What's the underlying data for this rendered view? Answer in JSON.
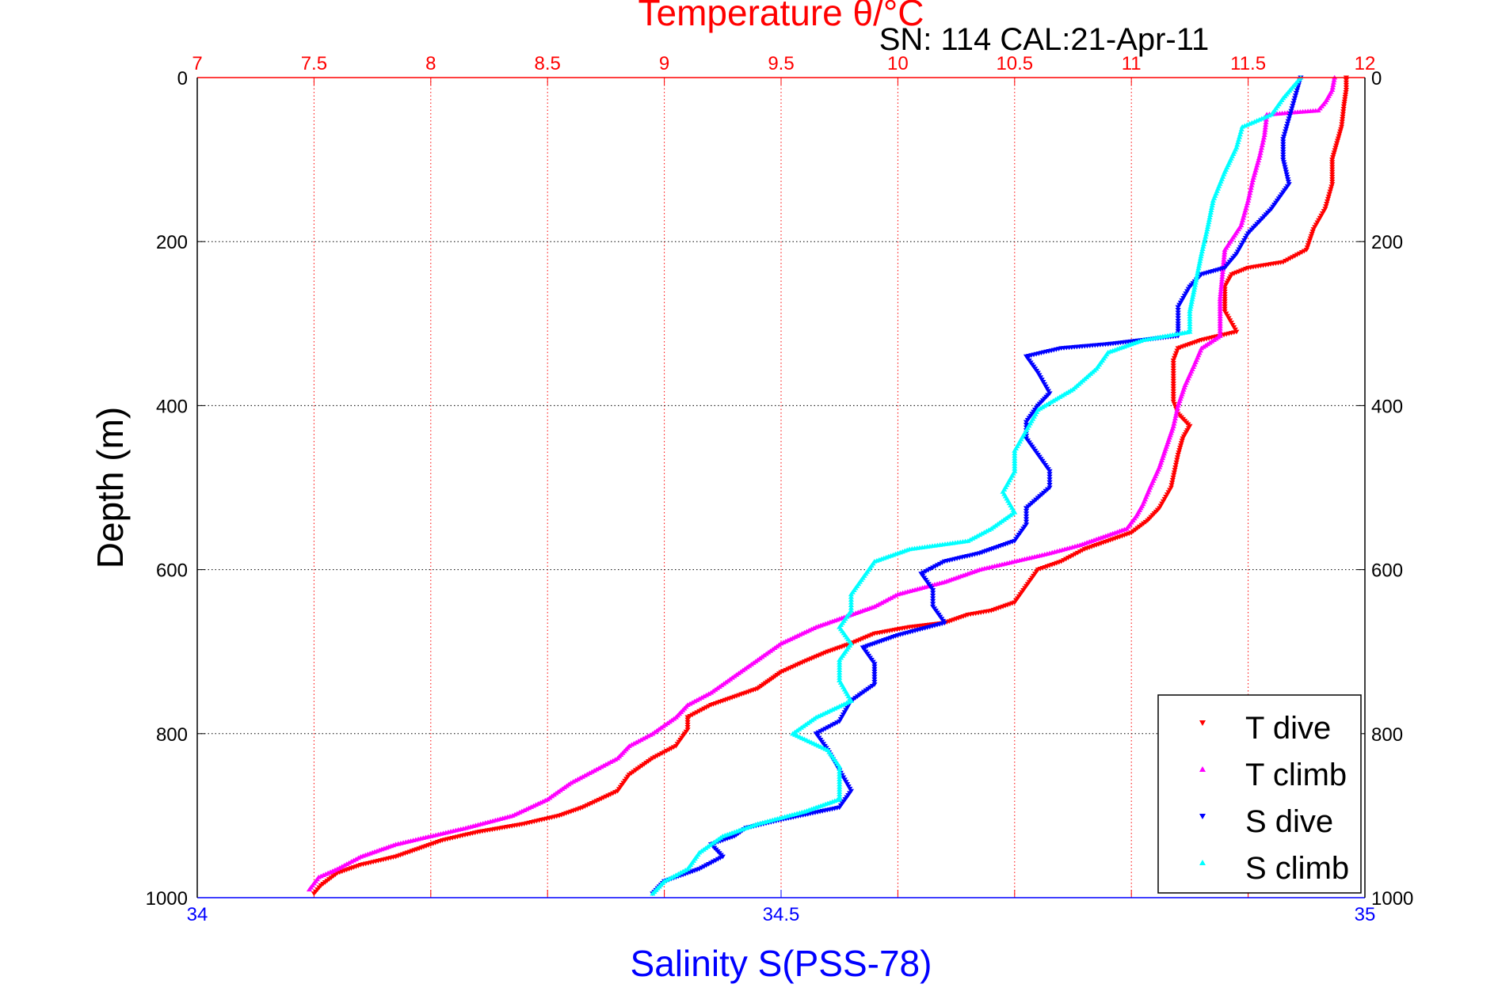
{
  "chart_data": {
    "type": "scatter",
    "subtitle": "SN: 114  CAL:21-Apr-11",
    "top_axis": {
      "label": "Temperature θ/°C",
      "range": [
        7,
        12
      ],
      "ticks": [
        "7",
        "7.5",
        "8",
        "8.5",
        "9",
        "9.5",
        "10",
        "10.5",
        "11",
        "11.5",
        "12"
      ],
      "color": "#ff0000",
      "grid": true
    },
    "bottom_axis": {
      "label": "Salinity S(PSS-78)",
      "range": [
        34,
        35
      ],
      "ticks": [
        "34",
        "34.5",
        "35"
      ],
      "color": "#0000ff"
    },
    "y_axis": {
      "label": "Depth (m)",
      "range": [
        0,
        1000
      ],
      "reversed": true,
      "ticks": [
        "0",
        "200",
        "400",
        "600",
        "800",
        "1000"
      ],
      "grid": true
    },
    "legend": {
      "placement": "bottom-right",
      "entries": [
        {
          "label": "T dive",
          "color": "#ff0000",
          "marker": "triangle-down"
        },
        {
          "label": "T climb",
          "color": "#ff00ff",
          "marker": "triangle-up"
        },
        {
          "label": "S dive",
          "color": "#0000ff",
          "marker": "triangle-down"
        },
        {
          "label": "S climb",
          "color": "#00ffff",
          "marker": "triangle-up"
        }
      ]
    },
    "series": [
      {
        "name": "T dive",
        "axis": "top",
        "color": "#ff0000",
        "marker": "triangle-down",
        "points": [
          [
            11.92,
            0
          ],
          [
            11.92,
            15
          ],
          [
            11.91,
            35
          ],
          [
            11.9,
            60
          ],
          [
            11.88,
            80
          ],
          [
            11.86,
            100
          ],
          [
            11.86,
            130
          ],
          [
            11.83,
            160
          ],
          [
            11.78,
            185
          ],
          [
            11.75,
            210
          ],
          [
            11.65,
            225
          ],
          [
            11.5,
            232
          ],
          [
            11.43,
            240
          ],
          [
            11.4,
            255
          ],
          [
            11.4,
            270
          ],
          [
            11.4,
            285
          ],
          [
            11.45,
            310
          ],
          [
            11.3,
            320
          ],
          [
            11.2,
            330
          ],
          [
            11.18,
            345
          ],
          [
            11.18,
            370
          ],
          [
            11.18,
            395
          ],
          [
            11.2,
            410
          ],
          [
            11.25,
            425
          ],
          [
            11.22,
            440
          ],
          [
            11.2,
            460
          ],
          [
            11.17,
            500
          ],
          [
            11.12,
            525
          ],
          [
            11.07,
            540
          ],
          [
            11.0,
            555
          ],
          [
            10.9,
            565
          ],
          [
            10.8,
            575
          ],
          [
            10.7,
            590
          ],
          [
            10.6,
            600
          ],
          [
            10.55,
            620
          ],
          [
            10.5,
            640
          ],
          [
            10.4,
            650
          ],
          [
            10.3,
            655
          ],
          [
            10.2,
            665
          ],
          [
            10.05,
            670
          ],
          [
            9.9,
            678
          ],
          [
            9.8,
            690
          ],
          [
            9.7,
            700
          ],
          [
            9.6,
            712
          ],
          [
            9.5,
            725
          ],
          [
            9.45,
            735
          ],
          [
            9.4,
            745
          ],
          [
            9.3,
            755
          ],
          [
            9.2,
            765
          ],
          [
            9.1,
            780
          ],
          [
            9.1,
            795
          ],
          [
            9.05,
            815
          ],
          [
            8.95,
            830
          ],
          [
            8.85,
            850
          ],
          [
            8.8,
            870
          ],
          [
            8.65,
            890
          ],
          [
            8.55,
            900
          ],
          [
            8.4,
            910
          ],
          [
            8.2,
            920
          ],
          [
            8.05,
            930
          ],
          [
            7.95,
            940
          ],
          [
            7.85,
            950
          ],
          [
            7.7,
            960
          ],
          [
            7.6,
            970
          ],
          [
            7.53,
            985
          ],
          [
            7.5,
            995
          ]
        ]
      },
      {
        "name": "T climb",
        "axis": "top",
        "color": "#ff00ff",
        "marker": "triangle-up",
        "points": [
          [
            11.87,
            0
          ],
          [
            11.86,
            15
          ],
          [
            11.83,
            30
          ],
          [
            11.8,
            40
          ],
          [
            11.58,
            45
          ],
          [
            11.57,
            70
          ],
          [
            11.55,
            95
          ],
          [
            11.52,
            125
          ],
          [
            11.5,
            150
          ],
          [
            11.47,
            180
          ],
          [
            11.4,
            210
          ],
          [
            11.39,
            240
          ],
          [
            11.38,
            270
          ],
          [
            11.38,
            300
          ],
          [
            11.38,
            315
          ],
          [
            11.3,
            330
          ],
          [
            11.27,
            350
          ],
          [
            11.23,
            375
          ],
          [
            11.2,
            400
          ],
          [
            11.18,
            425
          ],
          [
            11.15,
            450
          ],
          [
            11.12,
            475
          ],
          [
            11.08,
            500
          ],
          [
            11.05,
            520
          ],
          [
            11.02,
            535
          ],
          [
            10.98,
            550
          ],
          [
            10.88,
            560
          ],
          [
            10.78,
            570
          ],
          [
            10.65,
            580
          ],
          [
            10.5,
            590
          ],
          [
            10.35,
            600
          ],
          [
            10.2,
            615
          ],
          [
            10.0,
            630
          ],
          [
            9.9,
            645
          ],
          [
            9.8,
            655
          ],
          [
            9.65,
            670
          ],
          [
            9.5,
            690
          ],
          [
            9.4,
            710
          ],
          [
            9.3,
            730
          ],
          [
            9.2,
            750
          ],
          [
            9.1,
            765
          ],
          [
            9.05,
            780
          ],
          [
            8.95,
            800
          ],
          [
            8.85,
            815
          ],
          [
            8.8,
            830
          ],
          [
            8.7,
            845
          ],
          [
            8.6,
            860
          ],
          [
            8.5,
            880
          ],
          [
            8.35,
            900
          ],
          [
            8.15,
            915
          ],
          [
            8.0,
            925
          ],
          [
            7.85,
            935
          ],
          [
            7.7,
            950
          ],
          [
            7.6,
            965
          ],
          [
            7.52,
            975
          ],
          [
            7.48,
            990
          ]
        ]
      },
      {
        "name": "S dive",
        "axis": "bottom",
        "color": "#0000ff",
        "marker": "triangle-down",
        "points": [
          [
            34.945,
            0
          ],
          [
            34.94,
            25
          ],
          [
            34.935,
            50
          ],
          [
            34.93,
            75
          ],
          [
            34.93,
            100
          ],
          [
            34.935,
            130
          ],
          [
            34.92,
            160
          ],
          [
            34.9,
            190
          ],
          [
            34.89,
            215
          ],
          [
            34.88,
            232
          ],
          [
            34.86,
            240
          ],
          [
            34.85,
            255
          ],
          [
            34.84,
            280
          ],
          [
            34.84,
            300
          ],
          [
            34.84,
            315
          ],
          [
            34.78,
            325
          ],
          [
            34.74,
            330
          ],
          [
            34.71,
            340
          ],
          [
            34.72,
            360
          ],
          [
            34.73,
            385
          ],
          [
            34.72,
            400
          ],
          [
            34.71,
            420
          ],
          [
            34.71,
            440
          ],
          [
            34.72,
            460
          ],
          [
            34.73,
            480
          ],
          [
            34.73,
            500
          ],
          [
            34.71,
            525
          ],
          [
            34.71,
            545
          ],
          [
            34.7,
            565
          ],
          [
            34.67,
            580
          ],
          [
            34.64,
            590
          ],
          [
            34.62,
            605
          ],
          [
            34.63,
            625
          ],
          [
            34.63,
            645
          ],
          [
            34.64,
            665
          ],
          [
            34.6,
            680
          ],
          [
            34.57,
            695
          ],
          [
            34.58,
            715
          ],
          [
            34.58,
            740
          ],
          [
            34.56,
            760
          ],
          [
            34.55,
            785
          ],
          [
            34.53,
            800
          ],
          [
            34.54,
            820
          ],
          [
            34.55,
            845
          ],
          [
            34.56,
            870
          ],
          [
            34.55,
            890
          ],
          [
            34.5,
            905
          ],
          [
            34.47,
            915
          ],
          [
            34.46,
            925
          ],
          [
            34.44,
            935
          ],
          [
            34.45,
            950
          ],
          [
            34.43,
            965
          ],
          [
            34.4,
            980
          ],
          [
            34.39,
            995
          ]
        ]
      },
      {
        "name": "S climb",
        "axis": "bottom",
        "color": "#00ffff",
        "marker": "triangle-up",
        "points": [
          [
            34.945,
            0
          ],
          [
            34.93,
            25
          ],
          [
            34.92,
            45
          ],
          [
            34.895,
            60
          ],
          [
            34.89,
            85
          ],
          [
            34.88,
            115
          ],
          [
            34.87,
            150
          ],
          [
            34.865,
            185
          ],
          [
            34.86,
            215
          ],
          [
            34.855,
            250
          ],
          [
            34.85,
            285
          ],
          [
            34.85,
            310
          ],
          [
            34.81,
            320
          ],
          [
            34.78,
            335
          ],
          [
            34.77,
            355
          ],
          [
            34.75,
            380
          ],
          [
            34.72,
            405
          ],
          [
            34.71,
            430
          ],
          [
            34.7,
            455
          ],
          [
            34.7,
            480
          ],
          [
            34.69,
            505
          ],
          [
            34.7,
            530
          ],
          [
            34.68,
            550
          ],
          [
            34.66,
            565
          ],
          [
            34.61,
            575
          ],
          [
            34.58,
            590
          ],
          [
            34.57,
            610
          ],
          [
            34.56,
            630
          ],
          [
            34.56,
            650
          ],
          [
            34.55,
            670
          ],
          [
            34.56,
            690
          ],
          [
            34.55,
            710
          ],
          [
            34.55,
            735
          ],
          [
            34.56,
            760
          ],
          [
            34.53,
            780
          ],
          [
            34.51,
            800
          ],
          [
            34.54,
            820
          ],
          [
            34.55,
            840
          ],
          [
            34.55,
            865
          ],
          [
            34.55,
            880
          ],
          [
            34.52,
            895
          ],
          [
            34.48,
            910
          ],
          [
            34.45,
            925
          ],
          [
            34.43,
            945
          ],
          [
            34.42,
            965
          ],
          [
            34.4,
            980
          ],
          [
            34.39,
            995
          ]
        ]
      }
    ]
  }
}
